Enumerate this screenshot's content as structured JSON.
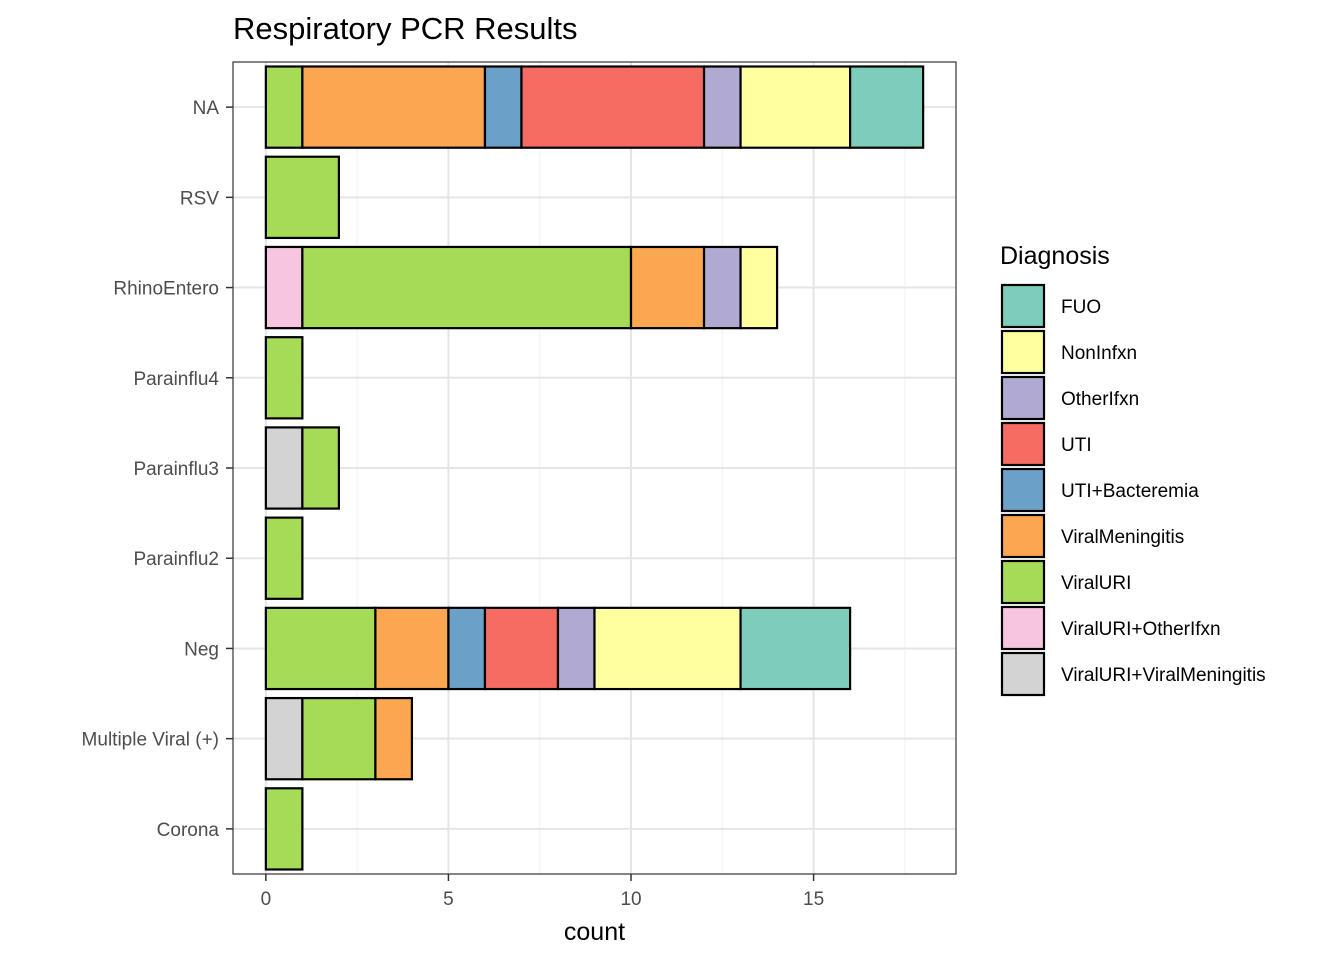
{
  "chart_data": {
    "type": "bar",
    "orientation": "horizontal",
    "stacked": true,
    "title": "Respiratory PCR Results",
    "xlabel": "count",
    "ylabel": "",
    "xlim": [
      -0.9,
      18.9
    ],
    "xticks": [
      0,
      5,
      10,
      15
    ],
    "grid": true,
    "legend_title": "Diagnosis",
    "legend_position": "right",
    "categories": [
      "NA",
      "RSV",
      "RhinoEntero",
      "Parainflu4",
      "Parainflu3",
      "Parainflu2",
      "Neg",
      "Multiple Viral (+)",
      "Corona"
    ],
    "series": [
      {
        "name": "ViralURI+ViralMeningitis",
        "color": "#D3D3D3",
        "values": [
          0,
          0,
          0,
          0,
          1,
          0,
          0,
          1,
          0
        ]
      },
      {
        "name": "ViralURI+OtherIfxn",
        "color": "#F8C5E0",
        "values": [
          0,
          0,
          1,
          0,
          0,
          0,
          0,
          0,
          0
        ]
      },
      {
        "name": "ViralURI",
        "color": "#A6DB58",
        "values": [
          1,
          2,
          9,
          1,
          1,
          1,
          3,
          2,
          1
        ]
      },
      {
        "name": "ViralMeningitis",
        "color": "#FBA651",
        "values": [
          5,
          0,
          2,
          0,
          0,
          0,
          2,
          1,
          0
        ]
      },
      {
        "name": "UTI+Bacteremia",
        "color": "#6BA1C9",
        "values": [
          1,
          0,
          0,
          0,
          0,
          0,
          1,
          0,
          0
        ]
      },
      {
        "name": "UTI",
        "color": "#F66B62",
        "values": [
          5,
          0,
          0,
          0,
          0,
          0,
          2,
          0,
          0
        ]
      },
      {
        "name": "OtherIfxn",
        "color": "#B0AAD2",
        "values": [
          1,
          0,
          1,
          0,
          0,
          0,
          1,
          0,
          0
        ]
      },
      {
        "name": "NonInfxn",
        "color": "#FFFFA0",
        "values": [
          3,
          0,
          1,
          0,
          0,
          0,
          4,
          0,
          0
        ]
      },
      {
        "name": "FUO",
        "color": "#7ECDBB",
        "values": [
          2,
          0,
          0,
          0,
          0,
          0,
          3,
          0,
          0
        ]
      }
    ],
    "legend_order": [
      "FUO",
      "NonInfxn",
      "OtherIfxn",
      "UTI",
      "UTI+Bacteremia",
      "ViralMeningitis",
      "ViralURI",
      "ViralURI+OtherIfxn",
      "ViralURI+ViralMeningitis"
    ]
  }
}
